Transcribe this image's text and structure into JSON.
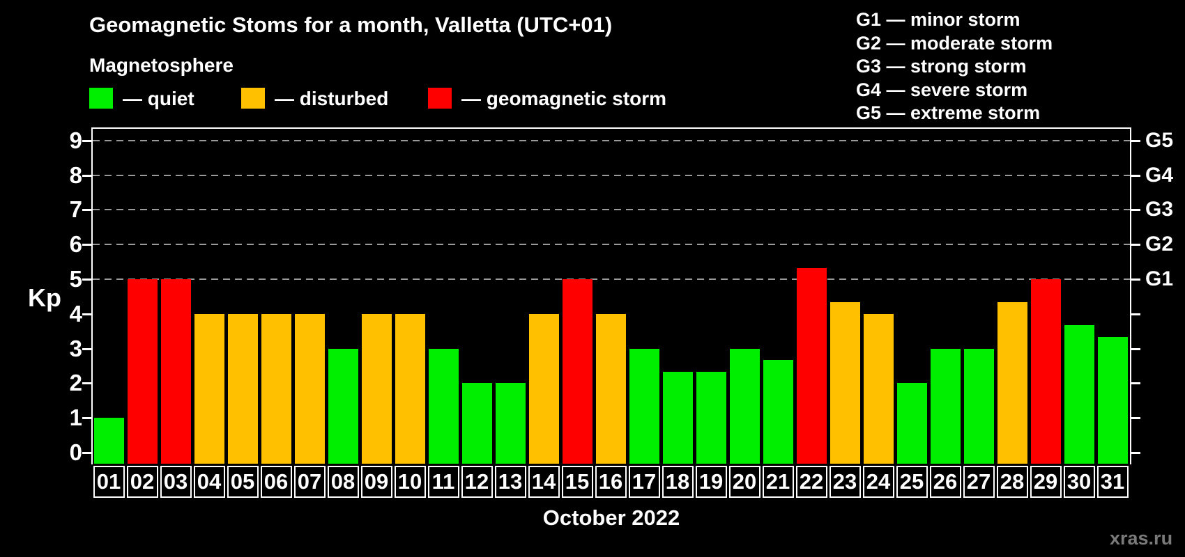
{
  "header": {
    "title": "Geomagnetic Stoms for a month, Valletta (UTC+01)",
    "subtitle": "Magnetosphere"
  },
  "legend": {
    "items": [
      {
        "key": "quiet",
        "label": "— quiet",
        "color": "#00ef00"
      },
      {
        "key": "disturbed",
        "label": "— disturbed",
        "color": "#ffc000"
      },
      {
        "key": "storm",
        "label": "— geomagnetic storm",
        "color": "#ff0000"
      }
    ]
  },
  "g_legend": {
    "items": [
      {
        "label": "G1 — minor storm"
      },
      {
        "label": "G2 — moderate storm"
      },
      {
        "label": "G3 — strong storm"
      },
      {
        "label": "G4 — severe storm"
      },
      {
        "label": "G5 — extreme storm"
      }
    ]
  },
  "footer": {
    "watermark": "xras.ru"
  },
  "chart_data": {
    "type": "bar",
    "title": "Geomagnetic Stoms for a month, Valletta (UTC+01)",
    "subtitle": "Magnetosphere",
    "xlabel": "October 2022",
    "ylabel": "Kp",
    "ylim": [
      0,
      9
    ],
    "y_ticks": [
      0,
      1,
      2,
      3,
      4,
      5,
      6,
      7,
      8,
      9
    ],
    "gridlines_at": [
      5,
      6,
      7,
      8,
      9
    ],
    "grid": "dashed",
    "legend_position": "top",
    "right_axis_labels": [
      {
        "kp": 5,
        "label": "G1"
      },
      {
        "kp": 6,
        "label": "G2"
      },
      {
        "kp": 7,
        "label": "G3"
      },
      {
        "kp": 8,
        "label": "G4"
      },
      {
        "kp": 9,
        "label": "G5"
      }
    ],
    "categories": [
      "01",
      "02",
      "03",
      "04",
      "05",
      "06",
      "07",
      "08",
      "09",
      "10",
      "11",
      "12",
      "13",
      "14",
      "15",
      "16",
      "17",
      "18",
      "19",
      "20",
      "21",
      "22",
      "23",
      "24",
      "25",
      "26",
      "27",
      "28",
      "29",
      "30",
      "31"
    ],
    "values": [
      1,
      5,
      5,
      4,
      4,
      4,
      4,
      3,
      4,
      4,
      3,
      2,
      2,
      4,
      5,
      4,
      3,
      2.33,
      2.33,
      3,
      2.67,
      5.33,
      4.33,
      4,
      2,
      3,
      3,
      4.33,
      5,
      3.67,
      3.33
    ],
    "status": [
      "quiet",
      "storm",
      "storm",
      "disturbed",
      "disturbed",
      "disturbed",
      "disturbed",
      "quiet",
      "disturbed",
      "disturbed",
      "quiet",
      "quiet",
      "quiet",
      "disturbed",
      "storm",
      "disturbed",
      "quiet",
      "quiet",
      "quiet",
      "quiet",
      "quiet",
      "storm",
      "disturbed",
      "disturbed",
      "quiet",
      "quiet",
      "quiet",
      "disturbed",
      "storm",
      "quiet",
      "quiet"
    ],
    "colors": {
      "quiet": "#00ef00",
      "disturbed": "#ffc000",
      "storm": "#ff0000"
    },
    "gridline_color": "#9a9a9a"
  }
}
